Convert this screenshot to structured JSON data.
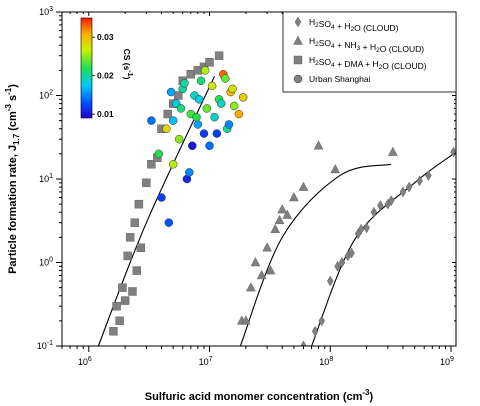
{
  "chart_data": {
    "type": "scatter",
    "xscale": "log",
    "yscale": "log",
    "xlim": [
      600000,
      1100000000
    ],
    "ylim": [
      0.1,
      1000
    ],
    "xlabel": "Sulfuric acid monomer concentration (cm-3)",
    "ylabel": "Particle formation rate, J1.7 (cm-3 s-1)",
    "x_ticks": [
      "10^6",
      "10^7",
      "10^8",
      "10^9"
    ],
    "y_ticks": [
      "10^-1",
      "10^0",
      "10^1",
      "10^2",
      "10^3"
    ],
    "legend_position": "top-right",
    "colorbar": {
      "label": "CS (s-1)",
      "ticks": [
        "0.01",
        "0.02",
        "0.03"
      ],
      "range": [
        0.009,
        0.035
      ],
      "colormap": "jet"
    },
    "series": [
      {
        "name": "H2SO4 + H2O (CLOUD)",
        "marker": "diamond",
        "color": "#808080",
        "x": [
          60000000.0,
          75000000.0,
          85000000.0,
          100000000.0,
          115000000.0,
          125000000.0,
          140000000.0,
          150000000.0,
          170000000.0,
          180000000.0,
          200000000.0,
          230000000.0,
          260000000.0,
          300000000.0,
          320000000.0,
          400000000.0,
          450000000.0,
          550000000.0,
          650000000.0,
          1050000000.0
        ],
        "y": [
          0.1,
          0.15,
          0.2,
          0.6,
          0.9,
          1.0,
          1.2,
          1.3,
          2.2,
          2.5,
          2.6,
          4.0,
          4.8,
          5.0,
          5.5,
          7.0,
          8.0,
          9.5,
          11.0,
          21.0
        ]
      },
      {
        "name": "H2SO4 + NH3 + H2O (CLOUD)",
        "marker": "triangle",
        "color": "#808080",
        "x": [
          18500000.0,
          20000000.0,
          22000000.0,
          24000000.0,
          27000000.0,
          30000000.0,
          32000000.0,
          35000000.0,
          38000000.0,
          40000000.0,
          44000000.0,
          50000000.0,
          60000000.0,
          80000000.0,
          110000000.0,
          330000000.0
        ],
        "y": [
          0.2,
          0.2,
          0.5,
          1.0,
          0.7,
          1.5,
          0.8,
          2.5,
          3.2,
          4.3,
          3.7,
          6.0,
          8.0,
          25.0,
          13.0,
          21.0
        ]
      },
      {
        "name": "H2SO4 + DMA + H2O (CLOUD)",
        "marker": "square",
        "color": "#808080",
        "x": [
          1600000.0,
          1700000.0,
          1800000.0,
          1900000.0,
          2000000.0,
          2100000.0,
          2200000.0,
          2300000.0,
          2400000.0,
          2500000.0,
          2600000.0,
          2700000.0,
          3000000.0,
          3300000.0,
          3700000.0,
          4000000.0,
          4500000.0,
          5000000.0,
          5500000.0,
          6000000.0,
          7000000.0,
          8000000.0,
          9000000.0,
          10000000.0,
          12000000.0
        ],
        "y": [
          0.15,
          0.3,
          0.2,
          0.5,
          0.35,
          1.2,
          2.0,
          0.45,
          3.0,
          0.8,
          5.0,
          1.5,
          9.0,
          15.0,
          18.0,
          40.0,
          60.0,
          80.0,
          100.0,
          150.0,
          180.0,
          200.0,
          220.0,
          250.0,
          300.0
        ]
      },
      {
        "name": "Urban Shanghai",
        "marker": "circle",
        "color": "#808080",
        "x": [
          3300000.0,
          3800000.0,
          4000000.0,
          4400000.0,
          4600000.0,
          5000000.0,
          5300000.0,
          5600000.0,
          6000000.0,
          6500000.0,
          7000000.0,
          7500000.0,
          8000000.0,
          8500000.0,
          9000000.0,
          9500000.0,
          10000000.0,
          10500000.0,
          11000000.0,
          12000000.0,
          13000000.0,
          14000000.0,
          15000000.0,
          16000000.0,
          17500000.0,
          19000000.0,
          5000000.0,
          6200000.0,
          7200000.0,
          8200000.0,
          9200000.0,
          11500000.0,
          13500000.0,
          15500000.0,
          5800000.0,
          4800000.0,
          6800000.0,
          7800000.0,
          12500000.0,
          14500000.0
        ],
        "y": [
          50.0,
          20.0,
          6.0,
          40.0,
          3.0,
          15.0,
          80.0,
          30.0,
          120.0,
          10.0,
          60.0,
          100.0,
          45.0,
          150.0,
          35.0,
          70.0,
          25.0,
          130.0,
          55.0,
          90.0,
          180.0,
          40.0,
          110.0,
          75.0,
          60.0,
          95.0,
          50.0,
          140.0,
          25.0,
          90.0,
          200.0,
          35.0,
          160.0,
          120.0,
          70.0,
          110.0,
          12.0,
          55.0,
          80.0,
          45.0
        ],
        "cs": [
          0.014,
          0.022,
          0.012,
          0.028,
          0.013,
          0.026,
          0.018,
          0.025,
          0.02,
          0.011,
          0.023,
          0.019,
          0.016,
          0.021,
          0.012,
          0.024,
          0.014,
          0.027,
          0.019,
          0.022,
          0.033,
          0.02,
          0.03,
          0.025,
          0.031,
          0.029,
          0.017,
          0.02,
          0.01,
          0.018,
          0.026,
          0.012,
          0.024,
          0.028,
          0.021,
          0.016,
          0.015,
          0.022,
          0.019,
          0.015
        ]
      }
    ],
    "fit_curves": [
      {
        "x": [
          1200000.0,
          3000000.0,
          11000000.0
        ],
        "y": [
          0.1,
          3.0,
          170.0
        ]
      },
      {
        "x": [
          18000000.0,
          40000000.0,
          120000000.0,
          320000000.0
        ],
        "y": [
          0.1,
          2.0,
          11.0,
          15.0
        ]
      },
      {
        "x": [
          70000000.0,
          160000000.0,
          500000000.0,
          1050000000.0
        ],
        "y": [
          0.1,
          1.9,
          9.0,
          20.0
        ]
      }
    ]
  }
}
